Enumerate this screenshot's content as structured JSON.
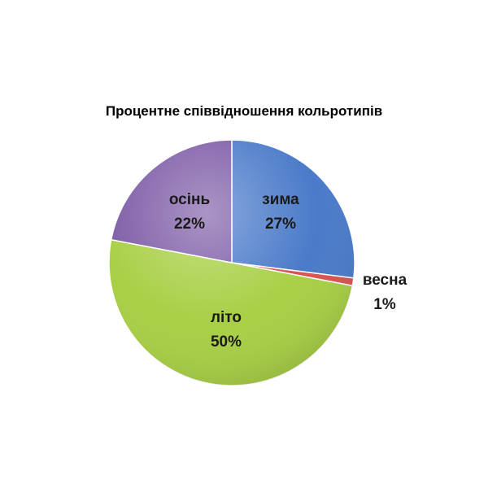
{
  "chart_data": {
    "type": "pie",
    "title": "Процентне співвідношення кольротипів",
    "slices": [
      {
        "label": "зима",
        "value": 27,
        "display": "27%",
        "color": "#4a7ac9"
      },
      {
        "label": "весна",
        "value": 1,
        "display": "1%",
        "color": "#d9534f"
      },
      {
        "label": "літо",
        "value": 50,
        "display": "50%",
        "color": "#a8cf45"
      },
      {
        "label": "осінь",
        "value": 22,
        "display": "22%",
        "color": "#7d5ba6"
      }
    ],
    "start_angle_deg": 0,
    "direction": "clockwise",
    "legend": "none",
    "label_position": "inside-except-small-outside"
  }
}
